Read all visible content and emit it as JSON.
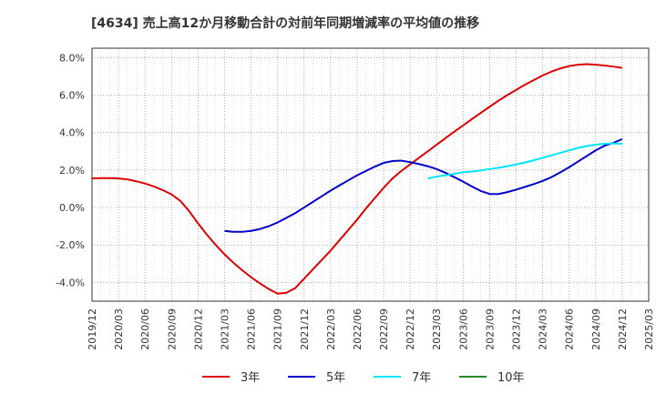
{
  "chart_data": {
    "type": "line",
    "title": "[4634]  売上高12か月移動合計の対前年同期増減率の平均値の推移",
    "xlabel": "",
    "ylabel": "",
    "ylim": [
      -5.0,
      8.5
    ],
    "yticks": [
      -4.0,
      -2.0,
      0.0,
      2.0,
      4.0,
      6.0,
      8.0
    ],
    "ytick_labels": [
      "-4.0%",
      "-2.0%",
      "0.0%",
      "2.0%",
      "4.0%",
      "6.0%",
      "8.0%"
    ],
    "xlim": [
      "2019-12",
      "2025-03"
    ],
    "xticks": [
      "2019/12",
      "2020/03",
      "2020/06",
      "2020/09",
      "2020/12",
      "2021/03",
      "2021/06",
      "2021/09",
      "2021/12",
      "2022/03",
      "2022/06",
      "2022/09",
      "2022/12",
      "2023/03",
      "2023/06",
      "2023/09",
      "2023/12",
      "2024/03",
      "2024/06",
      "2024/09",
      "2024/12",
      "2025/03"
    ],
    "grid": true,
    "legend_position": "bottom",
    "series": [
      {
        "name": "3年",
        "color": "#dd0000",
        "points": [
          [
            "2019-12",
            1.55
          ],
          [
            "2020-01",
            1.57
          ],
          [
            "2020-02",
            1.57
          ],
          [
            "2020-03",
            1.55
          ],
          [
            "2020-04",
            1.5
          ],
          [
            "2020-05",
            1.4
          ],
          [
            "2020-06",
            1.28
          ],
          [
            "2020-07",
            1.12
          ],
          [
            "2020-08",
            0.93
          ],
          [
            "2020-09",
            0.7
          ],
          [
            "2020-10",
            0.35
          ],
          [
            "2020-11",
            -0.2
          ],
          [
            "2020-12",
            -0.85
          ],
          [
            "2021-01",
            -1.45
          ],
          [
            "2021-02",
            -2.0
          ],
          [
            "2021-03",
            -2.5
          ],
          [
            "2021-04",
            -2.95
          ],
          [
            "2021-05",
            -3.35
          ],
          [
            "2021-06",
            -3.72
          ],
          [
            "2021-07",
            -4.05
          ],
          [
            "2021-08",
            -4.35
          ],
          [
            "2021-09",
            -4.6
          ],
          [
            "2021-10",
            -4.55
          ],
          [
            "2021-11",
            -4.3
          ],
          [
            "2021-12",
            -3.8
          ],
          [
            "2022-01",
            -3.3
          ],
          [
            "2022-02",
            -2.8
          ],
          [
            "2022-03",
            -2.3
          ],
          [
            "2022-04",
            -1.75
          ],
          [
            "2022-05",
            -1.2
          ],
          [
            "2022-06",
            -0.65
          ],
          [
            "2022-07",
            -0.05
          ],
          [
            "2022-08",
            0.5
          ],
          [
            "2022-09",
            1.05
          ],
          [
            "2022-10",
            1.55
          ],
          [
            "2022-11",
            1.95
          ],
          [
            "2022-12",
            2.3
          ],
          [
            "2023-01",
            2.65
          ],
          [
            "2023-02",
            3.0
          ],
          [
            "2023-03",
            3.35
          ],
          [
            "2023-04",
            3.7
          ],
          [
            "2023-05",
            4.05
          ],
          [
            "2023-06",
            4.38
          ],
          [
            "2023-07",
            4.72
          ],
          [
            "2023-08",
            5.05
          ],
          [
            "2023-09",
            5.38
          ],
          [
            "2023-10",
            5.7
          ],
          [
            "2023-11",
            6.0
          ],
          [
            "2023-12",
            6.28
          ],
          [
            "2024-01",
            6.55
          ],
          [
            "2024-02",
            6.8
          ],
          [
            "2024-03",
            7.05
          ],
          [
            "2024-04",
            7.25
          ],
          [
            "2024-05",
            7.42
          ],
          [
            "2024-06",
            7.55
          ],
          [
            "2024-07",
            7.62
          ],
          [
            "2024-08",
            7.65
          ],
          [
            "2024-09",
            7.62
          ],
          [
            "2024-10",
            7.58
          ],
          [
            "2024-11",
            7.52
          ],
          [
            "2024-12",
            7.45
          ]
        ]
      },
      {
        "name": "5年",
        "color": "#0000cc",
        "points": [
          [
            "2021-03",
            -1.25
          ],
          [
            "2021-04",
            -1.3
          ],
          [
            "2021-05",
            -1.3
          ],
          [
            "2021-06",
            -1.25
          ],
          [
            "2021-07",
            -1.15
          ],
          [
            "2021-08",
            -1.0
          ],
          [
            "2021-09",
            -0.8
          ],
          [
            "2021-10",
            -0.55
          ],
          [
            "2021-11",
            -0.3
          ],
          [
            "2021-12",
            0.0
          ],
          [
            "2022-01",
            0.3
          ],
          [
            "2022-02",
            0.6
          ],
          [
            "2022-03",
            0.9
          ],
          [
            "2022-04",
            1.18
          ],
          [
            "2022-05",
            1.45
          ],
          [
            "2022-06",
            1.72
          ],
          [
            "2022-07",
            1.95
          ],
          [
            "2022-08",
            2.18
          ],
          [
            "2022-09",
            2.38
          ],
          [
            "2022-10",
            2.48
          ],
          [
            "2022-11",
            2.5
          ],
          [
            "2022-12",
            2.42
          ],
          [
            "2023-01",
            2.32
          ],
          [
            "2023-02",
            2.2
          ],
          [
            "2023-03",
            2.05
          ],
          [
            "2023-04",
            1.85
          ],
          [
            "2023-05",
            1.62
          ],
          [
            "2023-06",
            1.38
          ],
          [
            "2023-07",
            1.12
          ],
          [
            "2023-08",
            0.88
          ],
          [
            "2023-09",
            0.72
          ],
          [
            "2023-10",
            0.72
          ],
          [
            "2023-11",
            0.82
          ],
          [
            "2023-12",
            0.95
          ],
          [
            "2024-01",
            1.1
          ],
          [
            "2024-02",
            1.25
          ],
          [
            "2024-03",
            1.42
          ],
          [
            "2024-04",
            1.62
          ],
          [
            "2024-05",
            1.88
          ],
          [
            "2024-06",
            2.15
          ],
          [
            "2024-07",
            2.45
          ],
          [
            "2024-08",
            2.75
          ],
          [
            "2024-09",
            3.05
          ],
          [
            "2024-10",
            3.3
          ],
          [
            "2024-11",
            3.45
          ],
          [
            "2024-12",
            3.65
          ]
        ]
      },
      {
        "name": "7年",
        "color": "#00e5ff",
        "points": [
          [
            "2023-02",
            1.55
          ],
          [
            "2023-03",
            1.65
          ],
          [
            "2023-04",
            1.72
          ],
          [
            "2023-05",
            1.8
          ],
          [
            "2023-06",
            1.88
          ],
          [
            "2023-07",
            1.92
          ],
          [
            "2023-08",
            1.98
          ],
          [
            "2023-09",
            2.05
          ],
          [
            "2023-10",
            2.12
          ],
          [
            "2023-11",
            2.2
          ],
          [
            "2023-12",
            2.3
          ],
          [
            "2024-01",
            2.4
          ],
          [
            "2024-02",
            2.52
          ],
          [
            "2024-03",
            2.65
          ],
          [
            "2024-04",
            2.78
          ],
          [
            "2024-05",
            2.92
          ],
          [
            "2024-06",
            3.05
          ],
          [
            "2024-07",
            3.18
          ],
          [
            "2024-08",
            3.28
          ],
          [
            "2024-09",
            3.35
          ],
          [
            "2024-10",
            3.4
          ],
          [
            "2024-11",
            3.42
          ],
          [
            "2024-12",
            3.4
          ]
        ]
      },
      {
        "name": "10年",
        "color": "#228b22",
        "points": []
      }
    ]
  }
}
